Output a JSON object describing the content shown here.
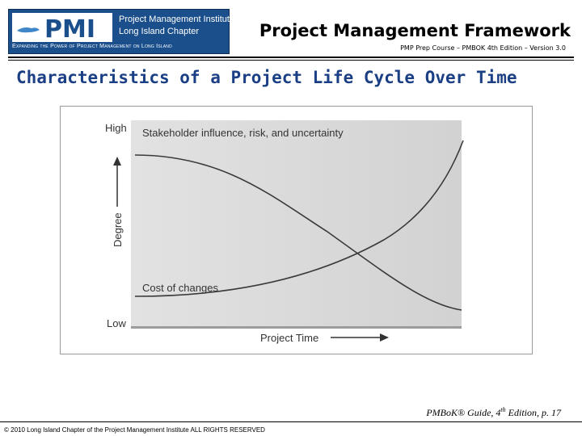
{
  "header": {
    "logo": {
      "mark_text": "PMI",
      "line1": "Project Management Institute",
      "line2": "Long Island Chapter",
      "tagline": "Expanding the Power of Project Management on Long Island"
    },
    "title": "Project Management Framework",
    "subtitle": "PMP Prep Course – PMBOK 4th Edition – Version 3.0"
  },
  "slide_title": "Characteristics of a Project Life Cycle Over Time",
  "diagram": {
    "y_high_label": "High",
    "y_low_label": "Low",
    "y_axis_label": "Degree",
    "x_axis_label": "Project Time",
    "curve1_label": "Stakeholder influence, risk, and uncertainty",
    "curve2_label": "Cost of changes",
    "colors": {
      "panel": "#d9d9d9",
      "curve": "#3a3a3a",
      "text": "#333333"
    }
  },
  "citation": {
    "text": "PMBoK® Guide, 4",
    "sup": "th",
    "tail": " Edition, p. 17"
  },
  "footer": "© 2010 Long Island Chapter of the Project Management Institute ALL RIGHTS RESERVED"
}
